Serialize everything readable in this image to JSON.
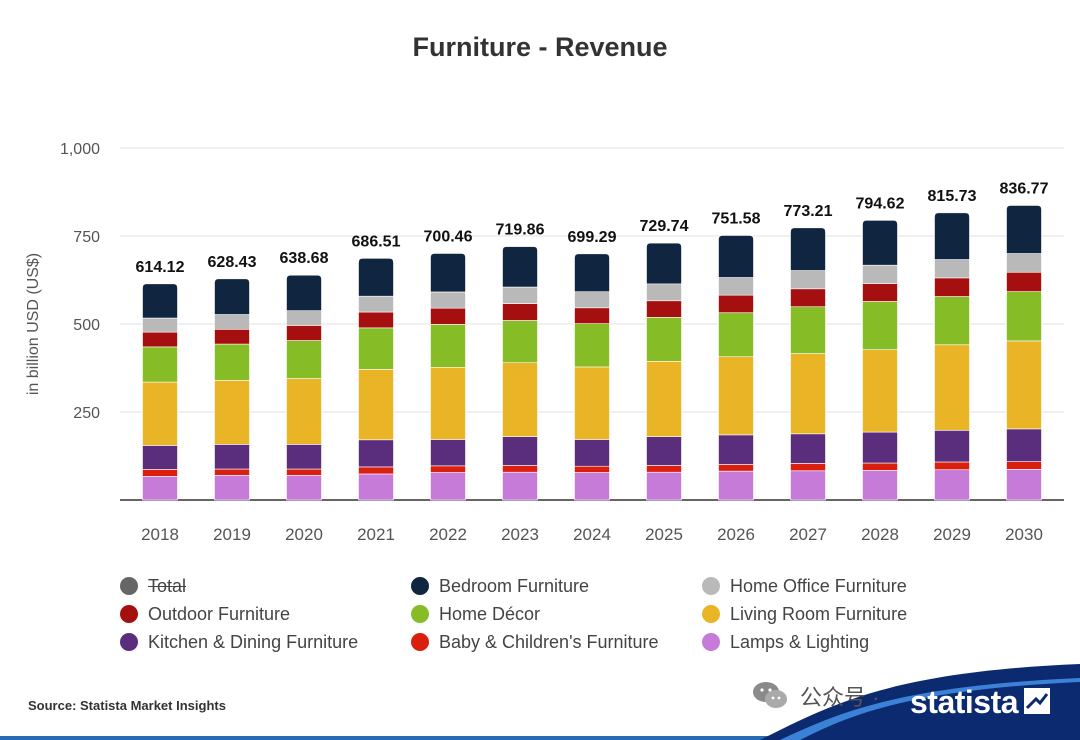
{
  "title": "Furniture - Revenue",
  "source": "Source: Statista Market Insights",
  "brand": "statista",
  "watermark": "公众号 ·",
  "colors": {
    "total": "#666666",
    "bedroom": "#0f2540",
    "home_office": "#b9b9b9",
    "outdoor": "#a50f0f",
    "home_decor": "#86bc25",
    "living_room": "#e9b425",
    "kitchen_dining": "#5a2d7d",
    "baby_children": "#d9200f",
    "lamps_lighting": "#c77bd9"
  },
  "legend": [
    {
      "label": "Total",
      "color": "#666666",
      "hidden": true
    },
    {
      "label": "Bedroom Furniture",
      "color": "#0f2540"
    },
    {
      "label": "Home Office Furniture",
      "color": "#b9b9b9"
    },
    {
      "label": "Outdoor Furniture",
      "color": "#a50f0f"
    },
    {
      "label": "Home Décor",
      "color": "#86bc25"
    },
    {
      "label": "Living Room Furniture",
      "color": "#e9b425"
    },
    {
      "label": "Kitchen & Dining Furniture",
      "color": "#5a2d7d"
    },
    {
      "label": "Baby & Children's Furniture",
      "color": "#d9200f"
    },
    {
      "label": "Lamps & Lighting",
      "color": "#c77bd9"
    }
  ],
  "chart_data": {
    "type": "bar",
    "stacked": true,
    "title": "Furniture - Revenue",
    "xlabel": "",
    "ylabel": "in billion USD (US$)",
    "ylim": [
      0,
      1000
    ],
    "yticks": [
      250,
      500,
      750,
      1000
    ],
    "ytick_labels": [
      "250",
      "500",
      "750",
      "1,000"
    ],
    "grid": true,
    "legend_position": "bottom",
    "categories": [
      "2018",
      "2019",
      "2020",
      "2021",
      "2022",
      "2023",
      "2024",
      "2025",
      "2026",
      "2027",
      "2028",
      "2029",
      "2030"
    ],
    "totals": [
      614.12,
      628.43,
      638.68,
      686.51,
      700.46,
      719.86,
      699.29,
      729.74,
      751.58,
      773.21,
      794.62,
      815.73,
      836.77
    ],
    "total_labels": [
      "614.12",
      "628.43",
      "638.68",
      "686.51",
      "700.46",
      "719.86",
      "699.29",
      "729.74",
      "751.58",
      "773.21",
      "794.62",
      "815.73",
      "836.77"
    ],
    "series": [
      {
        "name": "Lamps & Lighting",
        "color": "#c77bd9",
        "values": [
          67,
          70,
          70,
          74,
          78,
          79,
          78,
          79,
          82,
          83,
          84,
          86,
          87
        ]
      },
      {
        "name": "Baby & Children's Furniture",
        "color": "#d9200f",
        "values": [
          20,
          18,
          18,
          20,
          19,
          19,
          18,
          19,
          19,
          21,
          21,
          22,
          22
        ]
      },
      {
        "name": "Kitchen & Dining Furniture",
        "color": "#5a2d7d",
        "values": [
          68,
          70,
          70,
          77,
          75,
          82,
          76,
          82,
          84,
          84,
          88,
          90,
          93
        ]
      },
      {
        "name": "Living Room Furniture",
        "color": "#e9b425",
        "values": [
          180,
          182,
          187,
          200,
          205,
          210,
          206,
          214,
          222,
          228,
          234,
          243,
          250
        ]
      },
      {
        "name": "Home Décor",
        "color": "#86bc25",
        "values": [
          100,
          103,
          108,
          118,
          122,
          120,
          123,
          125,
          125,
          133,
          137,
          137,
          140
        ]
      },
      {
        "name": "Outdoor Furniture",
        "color": "#a50f0f",
        "values": [
          42,
          42,
          43,
          45,
          46,
          48,
          45,
          47,
          50,
          51,
          51,
          53,
          55
        ]
      },
      {
        "name": "Home Office Furniture",
        "color": "#b9b9b9",
        "values": [
          40,
          42,
          42,
          45,
          46,
          47,
          46,
          48,
          50,
          52,
          52,
          52,
          53
        ]
      },
      {
        "name": "Bedroom Furniture",
        "color": "#0f2540",
        "values": [
          97.12,
          101.43,
          100.68,
          107.51,
          109.46,
          114.86,
          107.29,
          115.74,
          119.58,
          121.21,
          127.62,
          132.73,
          136.77
        ]
      }
    ]
  }
}
